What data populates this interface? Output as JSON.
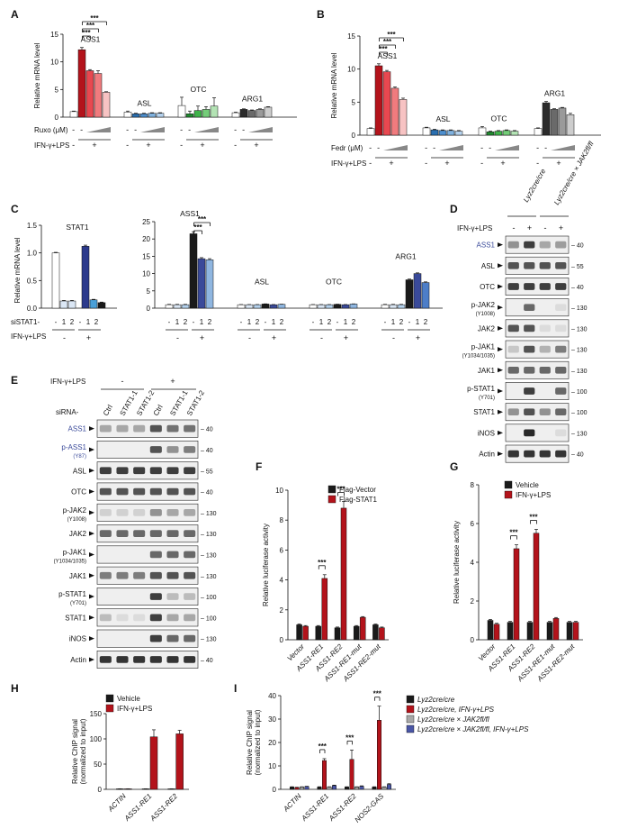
{
  "panels": {
    "A": {
      "label": "A",
      "ylabel": "Relative mRNA level",
      "yticks": [
        "0",
        "5",
        "10",
        "15"
      ],
      "genes": [
        "ASS1",
        "ASL",
        "OTC",
        "ARG1"
      ],
      "row1_label": "Ruxo (μM)",
      "row2_label": "IFN-γ+LPS",
      "sig": "***"
    },
    "B": {
      "label": "B",
      "ylabel": "Relative mRNA level",
      "yticks": [
        "0",
        "5",
        "10",
        "15"
      ],
      "genes": [
        "ASS1",
        "ASL",
        "OTC",
        "ARG1"
      ],
      "row1_label": "Fedr (μM)",
      "row2_label": "IFN-γ+LPS",
      "sig": "***"
    },
    "C": {
      "label": "C",
      "ylabel": "Relative mRNA level",
      "left_yticks": [
        "0.0",
        "0.5",
        "1.0",
        "1.5"
      ],
      "right_yticks": [
        "0",
        "5",
        "10",
        "15",
        "20",
        "25"
      ],
      "genes": [
        "STAT1",
        "ASS1",
        "ASL",
        "OTC",
        "ARG1"
      ],
      "row1_label": "siSTAT1-",
      "row2_label": "IFN-γ+LPS",
      "si_marks": [
        "-",
        "1",
        "2"
      ],
      "sig": "***"
    },
    "D": {
      "label": "D",
      "col_headers": [
        "Lyz2cre/cre",
        "Lyz2cre/cre × JAK2fl/fl"
      ],
      "treatment_label": "IFN-γ+LPS",
      "treatment_marks": [
        "-",
        "+",
        "-",
        "+"
      ],
      "rows": [
        {
          "name": "ASS1",
          "sub": "",
          "mw": "40"
        },
        {
          "name": "ASL",
          "sub": "",
          "mw": "55"
        },
        {
          "name": "OTC",
          "sub": "",
          "mw": "40"
        },
        {
          "name": "p-JAK2",
          "sub": "(Y1008)",
          "mw": "130"
        },
        {
          "name": "JAK2",
          "sub": "",
          "mw": "130"
        },
        {
          "name": "p-JAK1",
          "sub": "(Y1034/1035)",
          "mw": "130"
        },
        {
          "name": "JAK1",
          "sub": "",
          "mw": "130"
        },
        {
          "name": "p-STAT1",
          "sub": "(Y701)",
          "mw": "100"
        },
        {
          "name": "STAT1",
          "sub": "",
          "mw": "100"
        },
        {
          "name": "iNOS",
          "sub": "",
          "mw": "130"
        },
        {
          "name": "Actin",
          "sub": "",
          "mw": "40"
        }
      ]
    },
    "E": {
      "label": "E",
      "treatment_label": "IFN-γ+LPS",
      "treatment_marks": [
        "-",
        "+"
      ],
      "sirna_label": "siRNA-",
      "lanes": [
        "Ctrl",
        "STAT1-1",
        "STAT1-2",
        "Ctrl",
        "STAT1-1",
        "STAT1-2"
      ],
      "rows": [
        {
          "name": "ASS1",
          "sub": "",
          "mw": "40"
        },
        {
          "name": "p-ASS1",
          "sub": "(Y87)",
          "mw": "40"
        },
        {
          "name": "ASL",
          "sub": "",
          "mw": "55"
        },
        {
          "name": "OTC",
          "sub": "",
          "mw": "40"
        },
        {
          "name": "p-JAK2",
          "sub": "(Y1008)",
          "mw": "130"
        },
        {
          "name": "JAK2",
          "sub": "",
          "mw": "130"
        },
        {
          "name": "p-JAK1",
          "sub": "(Y1034/1035)",
          "mw": "130"
        },
        {
          "name": "JAK1",
          "sub": "",
          "mw": "130"
        },
        {
          "name": "p-STAT1",
          "sub": "(Y701)",
          "mw": "100"
        },
        {
          "name": "STAT1",
          "sub": "",
          "mw": "100"
        },
        {
          "name": "iNOS",
          "sub": "",
          "mw": "130"
        },
        {
          "name": "Actin",
          "sub": "",
          "mw": "40"
        }
      ]
    },
    "F": {
      "label": "F",
      "ylabel": "Relative luciferase activity",
      "yticks": [
        "0",
        "2",
        "4",
        "6",
        "8",
        "10"
      ],
      "legend": [
        "Flag-Vector",
        "Flag-STAT1"
      ],
      "categories": [
        "Vector",
        "ASS1-RE1",
        "ASS1-RE2",
        "ASS1-RE1-mut",
        "ASS1-RE2-mut"
      ],
      "sig": "***"
    },
    "G": {
      "label": "G",
      "ylabel": "Relative luciferase activity",
      "yticks": [
        "0",
        "2",
        "4",
        "6",
        "8"
      ],
      "legend": [
        "Vehicle",
        "IFN-γ+LPS"
      ],
      "categories": [
        "Vector",
        "ASS1-RE1",
        "ASS1-RE2",
        "ASS1-RE1-mut",
        "ASS1-RE2-mut"
      ],
      "sig": "***"
    },
    "H": {
      "label": "H",
      "ylabel": "Relative ChIP signal (normalized to input)",
      "ylabel1": "Relative ChIP signal",
      "ylabel2": "(normalized to input)",
      "yticks": [
        "0",
        "50",
        "100",
        "150"
      ],
      "legend": [
        "Vehicle",
        "IFN-γ+LPS"
      ],
      "categories": [
        "ACTIN",
        "ASS1-RE1",
        "ASS1-RE2"
      ]
    },
    "I": {
      "label": "I",
      "ylabel1": "Relative ChIP signal",
      "ylabel2": "(normalized to input)",
      "yticks": [
        "0",
        "10",
        "20",
        "30",
        "40"
      ],
      "legend": [
        "Lyz2cre/cre",
        "Lyz2cre/cre, IFN-γ+LPS",
        "Lyz2cre/cre × JAK2fl/fl",
        "Lyz2cre/cre × JAK2fl/fl, IFN-γ+LPS"
      ],
      "categories": [
        "ACTIN",
        "ASS1-RE1",
        "ASS1-RE2",
        "NOS2-GAS"
      ],
      "sig": "***"
    }
  },
  "colors": {
    "black": "#1a1a1a",
    "red": "#b3131b",
    "grey": "#a8a8a8",
    "blue": "#4a56a6",
    "ass1_label": "#3a4a9a"
  },
  "chart_data": [
    {
      "type": "bar",
      "panel": "A",
      "groups": [
        {
          "gene": "ASS1",
          "values": [
            1.0,
            12.2,
            8.4,
            7.9,
            4.5
          ],
          "errors": [
            0.1,
            0.4,
            0.2,
            0.5,
            0.1
          ]
        },
        {
          "gene": "ASL",
          "values": [
            0.9,
            0.6,
            0.6,
            0.7,
            0.7
          ],
          "errors": [
            0.2,
            0.1,
            0.1,
            0.1,
            0.1
          ]
        },
        {
          "gene": "OTC",
          "values": [
            2.1,
            0.6,
            1.2,
            1.4,
            2.0
          ],
          "errors": [
            1.5,
            0.5,
            0.8,
            0.5,
            1.5
          ]
        },
        {
          "gene": "ARG1",
          "values": [
            0.8,
            1.4,
            1.2,
            1.4,
            1.8
          ],
          "errors": [
            0.1,
            0.1,
            0.1,
            0.1,
            0.1
          ]
        }
      ],
      "ylim": [
        0,
        15
      ]
    },
    {
      "type": "bar",
      "panel": "B",
      "groups": [
        {
          "gene": "ASS1",
          "values": [
            1.0,
            10.5,
            9.6,
            7.1,
            5.4
          ],
          "errors": [
            0.1,
            0.3,
            0.2,
            0.2,
            0.2
          ]
        },
        {
          "gene": "ASL",
          "values": [
            1.1,
            0.8,
            0.7,
            0.7,
            0.6
          ],
          "errors": [
            0.1,
            0.1,
            0.1,
            0.1,
            0.1
          ]
        },
        {
          "gene": "OTC",
          "values": [
            1.1,
            0.5,
            0.6,
            0.7,
            0.6
          ],
          "errors": [
            0.2,
            0.1,
            0.1,
            0.1,
            0.1
          ]
        },
        {
          "gene": "ARG1",
          "values": [
            1.0,
            4.9,
            3.9,
            4.1,
            3.1
          ],
          "errors": [
            0.1,
            0.2,
            0.1,
            0.1,
            0.2
          ]
        }
      ],
      "ylim": [
        0,
        15
      ]
    },
    {
      "type": "bar",
      "panel": "C-left",
      "groups": [
        {
          "gene": "STAT1",
          "values": [
            1.0,
            0.13,
            0.13,
            1.12,
            0.15,
            0.1
          ],
          "errors": [
            0.01,
            0.01,
            0.01,
            0.02,
            0.01,
            0.01
          ]
        }
      ],
      "ylim": [
        0,
        1.5
      ]
    },
    {
      "type": "bar",
      "panel": "C-right",
      "groups": [
        {
          "gene": "ASS1",
          "values": [
            1.0,
            1.0,
            1.0,
            21.5,
            14.3,
            14.0
          ],
          "errors": [
            0.1,
            0.1,
            0.1,
            0.6,
            0.3,
            0.3
          ]
        },
        {
          "gene": "ASL",
          "values": [
            1.0,
            1.0,
            1.0,
            1.2,
            1.0,
            1.1
          ],
          "errors": [
            0.05,
            0.05,
            0.05,
            0.05,
            0.05,
            0.05
          ]
        },
        {
          "gene": "OTC",
          "values": [
            1.0,
            1.0,
            1.0,
            1.1,
            1.0,
            1.2
          ],
          "errors": [
            0.05,
            0.05,
            0.05,
            0.05,
            0.05,
            0.05
          ]
        },
        {
          "gene": "ARG1",
          "values": [
            1.0,
            1.0,
            1.0,
            8.2,
            10.0,
            7.4
          ],
          "errors": [
            0.1,
            0.1,
            0.1,
            0.2,
            0.2,
            0.2
          ]
        }
      ],
      "ylim": [
        0,
        25
      ]
    },
    {
      "type": "bar",
      "panel": "F",
      "series": [
        {
          "name": "Flag-Vector",
          "values": [
            1.0,
            0.9,
            0.8,
            0.9,
            1.0
          ]
        },
        {
          "name": "Flag-STAT1",
          "values": [
            0.9,
            4.1,
            8.8,
            1.5,
            0.8
          ]
        }
      ],
      "errors": [
        [
          0.05,
          0.05,
          0.05,
          0.05,
          0.05
        ],
        [
          0.05,
          0.25,
          0.45,
          0.05,
          0.05
        ]
      ],
      "ylim": [
        0,
        10
      ]
    },
    {
      "type": "bar",
      "panel": "G",
      "series": [
        {
          "name": "Vehicle",
          "values": [
            1.0,
            0.9,
            0.9,
            0.9,
            0.9
          ]
        },
        {
          "name": "IFN-γ+LPS",
          "values": [
            0.8,
            4.7,
            5.5,
            1.1,
            0.9
          ]
        }
      ],
      "errors": [
        [
          0.05,
          0.05,
          0.05,
          0.05,
          0.05
        ],
        [
          0.05,
          0.2,
          0.2,
          0.05,
          0.05
        ]
      ],
      "ylim": [
        0,
        8
      ]
    },
    {
      "type": "bar",
      "panel": "H",
      "series": [
        {
          "name": "Vehicle",
          "values": [
            1.0,
            1.0,
            1.0
          ]
        },
        {
          "name": "IFN-γ+LPS",
          "values": [
            1.0,
            104,
            110
          ]
        }
      ],
      "errors": [
        [
          0.2,
          0.2,
          0.2
        ],
        [
          0.2,
          14,
          7
        ]
      ],
      "ylim": [
        0,
        150
      ]
    },
    {
      "type": "bar",
      "panel": "I",
      "series": [
        {
          "name": "Lyz2cre/cre",
          "values": [
            1.0,
            1.0,
            1.0,
            1.0
          ]
        },
        {
          "name": "Lyz2cre/cre, IFN-γ+LPS",
          "values": [
            0.8,
            12.3,
            12.8,
            29.5
          ]
        },
        {
          "name": "Lyz2cre/cre × JAK2fl/fl",
          "values": [
            1.0,
            1.0,
            1.0,
            1.0
          ]
        },
        {
          "name": "Lyz2cre/cre × JAK2fl/fl, IFN-γ+LPS",
          "values": [
            1.2,
            1.6,
            1.3,
            2.1
          ]
        }
      ],
      "errors": [
        [
          0.1,
          0.1,
          0.1,
          0.1
        ],
        [
          0.1,
          0.8,
          4.0,
          6.0
        ],
        [
          0.1,
          0.1,
          0.1,
          0.1
        ],
        [
          0.1,
          0.2,
          0.2,
          0.3
        ]
      ],
      "ylim": [
        0,
        40
      ]
    }
  ]
}
